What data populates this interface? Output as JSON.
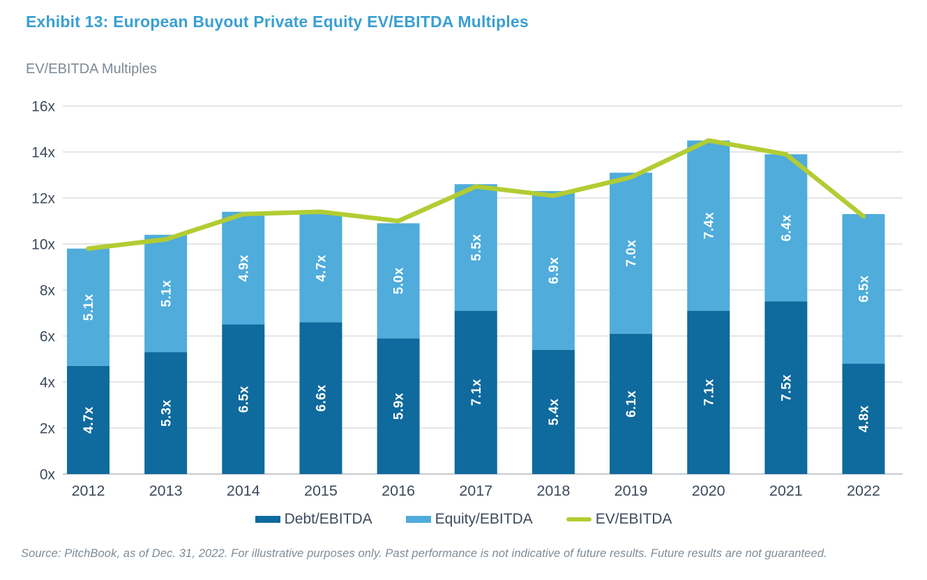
{
  "header": {
    "title": "Exhibit 13: European Buyout Private Equity EV/EBITDA Multiples",
    "subtitle": "EV/EBITDA Multiples"
  },
  "chart_data": {
    "type": "bar",
    "subtype": "stacked-bars-with-line-overlay",
    "title": "Exhibit 13: European Buyout Private Equity EV/EBITDA Multiples",
    "ylabel": "EV/EBITDA Multiples",
    "xlabel": "",
    "categories": [
      "2012",
      "2013",
      "2014",
      "2015",
      "2016",
      "2017",
      "2018",
      "2019",
      "2020",
      "2021",
      "2022"
    ],
    "series": [
      {
        "name": "Debt/EBITDA",
        "type": "bar",
        "stack": true,
        "color": "#0f6a9d",
        "values": [
          4.7,
          5.3,
          6.5,
          6.6,
          5.9,
          7.1,
          5.4,
          6.1,
          7.1,
          7.5,
          4.8
        ],
        "labels": [
          "4.7x",
          "5.3x",
          "6.5x",
          "6.6x",
          "5.9x",
          "7.1x",
          "5.4x",
          "6.1x",
          "7.1x",
          "7.5x",
          "4.8x"
        ]
      },
      {
        "name": "Equity/EBITDA",
        "type": "bar",
        "stack": true,
        "color": "#4facdb",
        "values": [
          5.1,
          5.1,
          4.9,
          4.7,
          5.0,
          5.5,
          6.9,
          7.0,
          7.4,
          6.4,
          6.5
        ],
        "labels": [
          "5.1x",
          "5.1x",
          "4.9x",
          "4.7x",
          "5.0x",
          "5.5x",
          "6.9x",
          "7.0x",
          "7.4x",
          "6.4x",
          "6.5x"
        ]
      },
      {
        "name": "EV/EBITDA",
        "type": "line",
        "color": "#b2cc33",
        "values": [
          9.8,
          10.2,
          11.3,
          11.4,
          11.0,
          12.5,
          12.1,
          12.9,
          14.5,
          13.9,
          11.2
        ]
      }
    ],
    "ylim": [
      0,
      16
    ],
    "y_ticks": [
      "0x",
      "2x",
      "4x",
      "6x",
      "8x",
      "10x",
      "12x",
      "14x",
      "16x"
    ],
    "y_tick_values": [
      0,
      2,
      4,
      6,
      8,
      10,
      12,
      14,
      16
    ],
    "grid": true,
    "legend_position": "bottom",
    "value_label_color": "#ffffff",
    "axis_text_color": "#3d4a5c",
    "gridline_color": "#dcdddd",
    "baseline_color": "#c6cacd"
  },
  "legend": {
    "items": [
      {
        "label": "Debt/EBITDA",
        "swatch": "rect",
        "color": "#0f6a9d"
      },
      {
        "label": "Equity/EBITDA",
        "swatch": "rect",
        "color": "#4facdb"
      },
      {
        "label": "EV/EBITDA",
        "swatch": "line",
        "color": "#b2cc33"
      }
    ]
  },
  "footer": {
    "source": "Source: PitchBook, as of Dec. 31, 2022. For illustrative purposes only. Past performance is not indicative of future results. Future results are not guaranteed."
  }
}
